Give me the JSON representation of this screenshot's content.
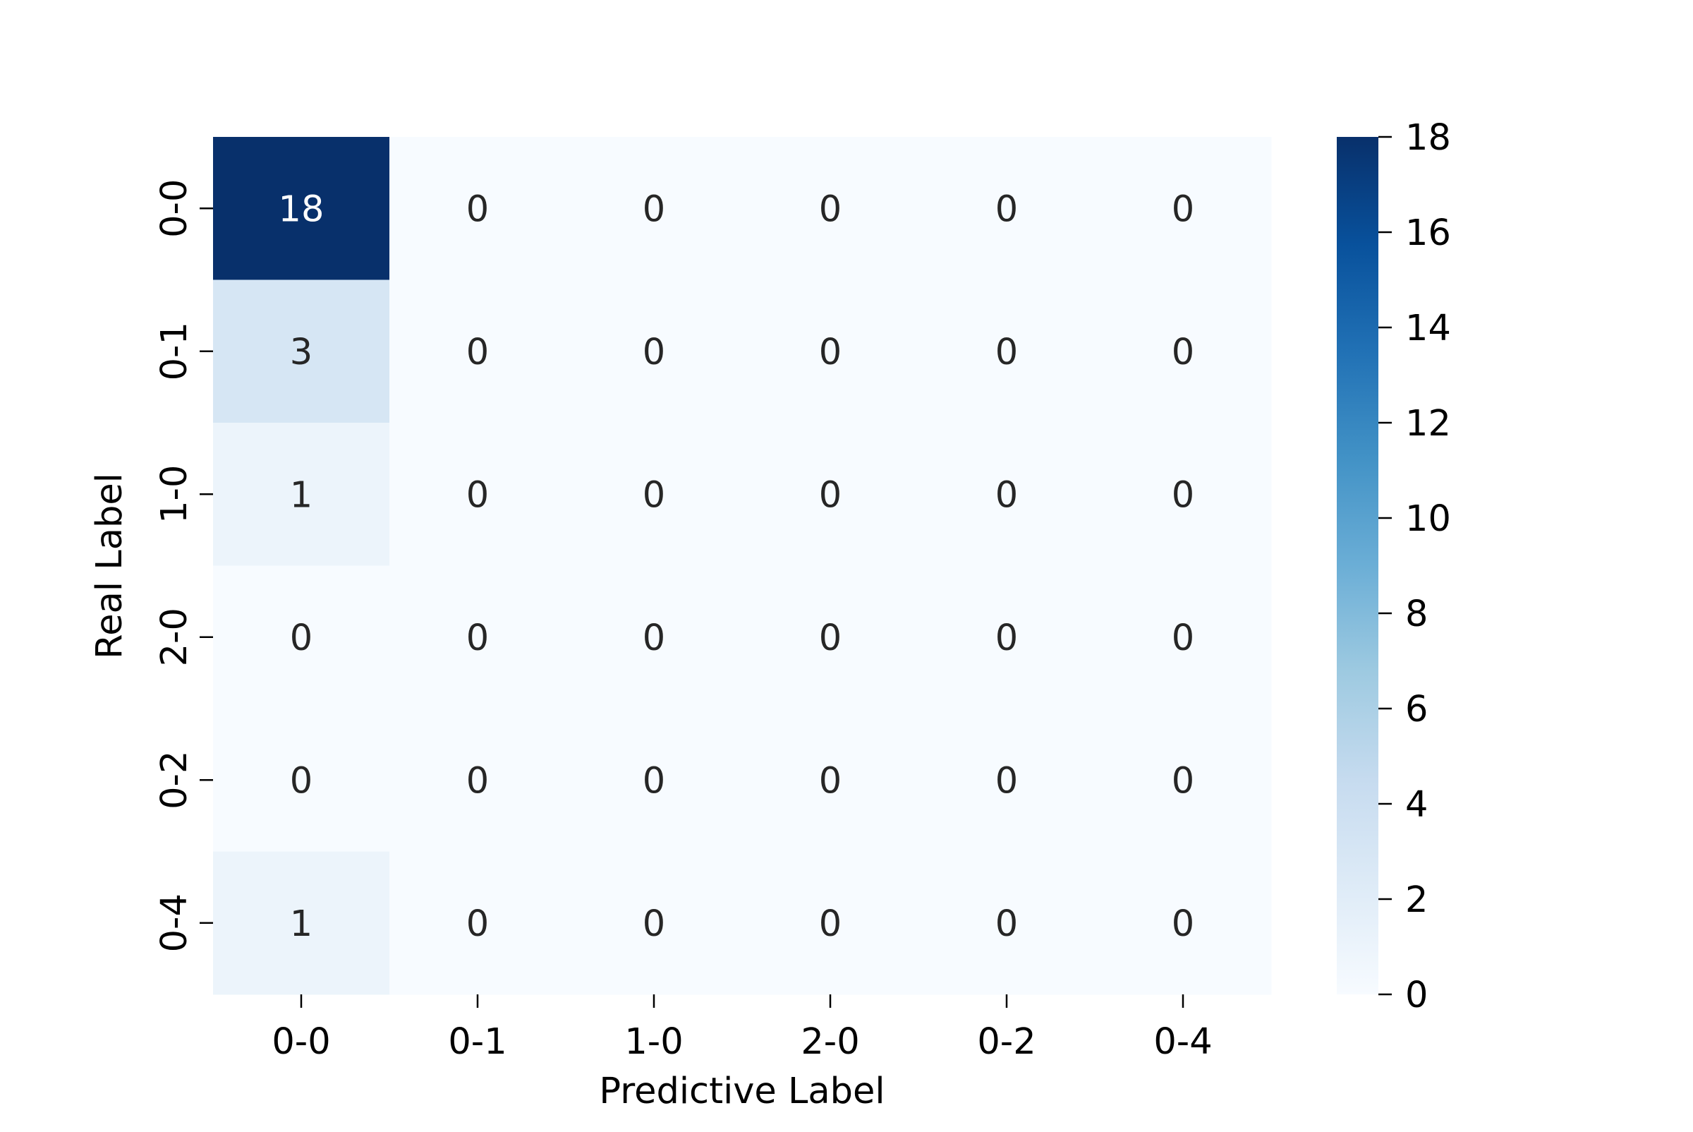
{
  "chart_data": {
    "type": "heatmap",
    "xlabel": "Predictive Label",
    "ylabel": "Real Label",
    "x_categories": [
      "0-0",
      "0-1",
      "1-0",
      "2-0",
      "0-2",
      "0-4"
    ],
    "y_categories": [
      "0-0",
      "0-1",
      "1-0",
      "2-0",
      "0-2",
      "0-4"
    ],
    "values": [
      [
        18,
        0,
        0,
        0,
        0,
        0
      ],
      [
        3,
        0,
        0,
        0,
        0,
        0
      ],
      [
        1,
        0,
        0,
        0,
        0,
        0
      ],
      [
        0,
        0,
        0,
        0,
        0,
        0
      ],
      [
        0,
        0,
        0,
        0,
        0,
        0
      ],
      [
        1,
        0,
        0,
        0,
        0,
        0
      ]
    ],
    "annotated": true,
    "colormap": "Blues",
    "colorbar": {
      "vmin": 0,
      "vmax": 18,
      "ticks": [
        "0",
        "2",
        "4",
        "6",
        "8",
        "10",
        "12",
        "14",
        "16",
        "18"
      ]
    },
    "colors": {
      "low": "#f7fbff",
      "high": "#08306b",
      "text_dark": "#262626",
      "text_light": "#ffffff"
    }
  }
}
